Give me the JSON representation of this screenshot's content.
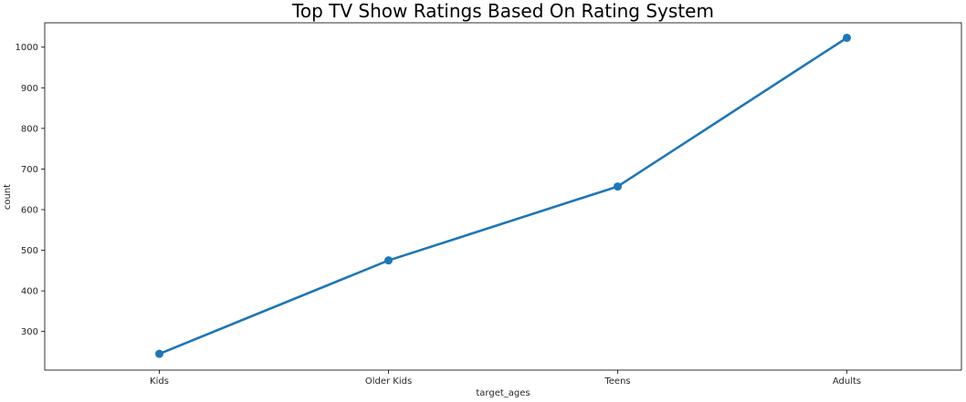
{
  "chart_data": {
    "type": "line",
    "title": "Top TV Show Ratings Based On Rating System",
    "xlabel": "target_ages",
    "ylabel": "count",
    "categories": [
      "Kids",
      "Older Kids",
      "Teens",
      "Adults"
    ],
    "series": [
      {
        "values": [
          245,
          475,
          657,
          1023
        ]
      }
    ],
    "ylim": [
      205,
      1060
    ],
    "yticks": [
      300,
      400,
      500,
      600,
      700,
      800,
      900,
      1000
    ],
    "grid": false,
    "legend": "none",
    "color": "#1f77b4"
  }
}
